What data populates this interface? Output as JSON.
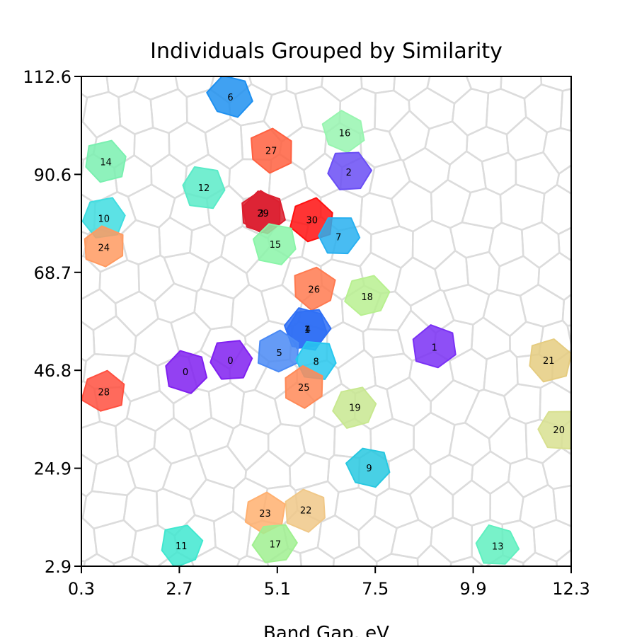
{
  "chart_data": {
    "type": "scatter",
    "title": "Individuals Grouped by Similarity",
    "xlabel": "Band Gap, eV",
    "ylabel": "",
    "xlim": [
      0.3,
      12.3
    ],
    "ylim": [
      2.9,
      112.6
    ],
    "x_ticks": [
      "0.3",
      "2.7",
      "5.1",
      "7.5",
      "9.9",
      "12.3"
    ],
    "y_ticks": [
      "2.9",
      "24.9",
      "46.8",
      "68.7",
      "90.6",
      "112.6"
    ],
    "background": "voronoi-tessellation",
    "grid": false,
    "points": [
      {
        "label": "6",
        "x": 3.95,
        "y": 108.0,
        "color": "#1e90f0"
      },
      {
        "label": "16",
        "x": 6.75,
        "y": 100.0,
        "color": "#98f5b0"
      },
      {
        "label": "27",
        "x": 4.95,
        "y": 96.0,
        "color": "#ff6040"
      },
      {
        "label": "14",
        "x": 0.9,
        "y": 93.5,
        "color": "#7af0b0"
      },
      {
        "label": "2",
        "x": 6.85,
        "y": 91.2,
        "color": "#6a4ef5"
      },
      {
        "label": "12",
        "x": 3.3,
        "y": 87.7,
        "color": "#5aebc8"
      },
      {
        "label": "29",
        "x": 4.75,
        "y": 82.0,
        "color": "#dc2030"
      },
      {
        "label": "3",
        "x": 4.7,
        "y": 82.0,
        "color": "#dc2030"
      },
      {
        "label": "30",
        "x": 5.95,
        "y": 80.5,
        "color": "#ff1010"
      },
      {
        "label": "10",
        "x": 0.85,
        "y": 80.8,
        "color": "#40dde0"
      },
      {
        "label": "7",
        "x": 6.6,
        "y": 76.7,
        "color": "#28b0f0"
      },
      {
        "label": "15",
        "x": 5.05,
        "y": 75.0,
        "color": "#8af5a8"
      },
      {
        "label": "24",
        "x": 0.85,
        "y": 74.3,
        "color": "#ff9a60"
      },
      {
        "label": "26",
        "x": 6.0,
        "y": 65.0,
        "color": "#ff7a50"
      },
      {
        "label": "18",
        "x": 7.3,
        "y": 63.3,
        "color": "#b8f090"
      },
      {
        "label": "4",
        "x": 5.85,
        "y": 56.0,
        "color": "#3070f5"
      },
      {
        "label": "1",
        "x": 5.83,
        "y": 56.0,
        "color": "#3070f5"
      },
      {
        "label": "1",
        "x": 8.95,
        "y": 52.0,
        "color": "#7a30f5"
      },
      {
        "label": "5",
        "x": 5.15,
        "y": 50.8,
        "color": "#4a8af5"
      },
      {
        "label": "21",
        "x": 11.75,
        "y": 49.0,
        "color": "#e5cc80"
      },
      {
        "label": "0",
        "x": 3.95,
        "y": 49.0,
        "color": "#8020f0"
      },
      {
        "label": "8",
        "x": 6.05,
        "y": 48.8,
        "color": "#28c8ef"
      },
      {
        "label": "0",
        "x": 2.85,
        "y": 46.5,
        "color": "#8020f0"
      },
      {
        "label": "25",
        "x": 5.75,
        "y": 43.0,
        "color": "#ff8a58"
      },
      {
        "label": "28",
        "x": 0.85,
        "y": 42.0,
        "color": "#ff5040"
      },
      {
        "label": "19",
        "x": 7.0,
        "y": 38.5,
        "color": "#c8e890"
      },
      {
        "label": "20",
        "x": 12.0,
        "y": 33.5,
        "color": "#d8e090"
      },
      {
        "label": "9",
        "x": 7.35,
        "y": 24.9,
        "color": "#28c8e0"
      },
      {
        "label": "22",
        "x": 5.8,
        "y": 15.5,
        "color": "#f0c888"
      },
      {
        "label": "23",
        "x": 4.8,
        "y": 14.8,
        "color": "#ffb070"
      },
      {
        "label": "11",
        "x": 2.75,
        "y": 7.5,
        "color": "#40e8d0"
      },
      {
        "label": "17",
        "x": 5.05,
        "y": 7.9,
        "color": "#a0f090"
      },
      {
        "label": "13",
        "x": 10.5,
        "y": 7.4,
        "color": "#60f0c0"
      }
    ]
  }
}
